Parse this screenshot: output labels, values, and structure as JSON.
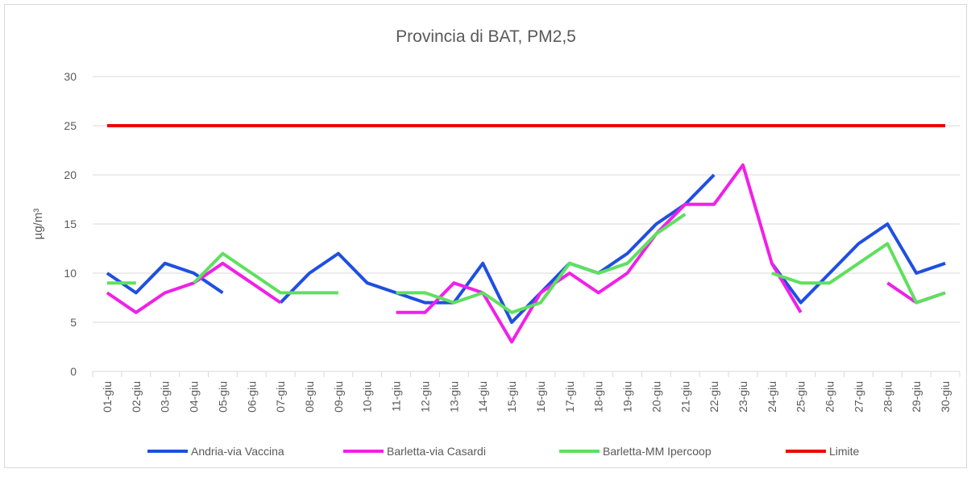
{
  "chart_data": {
    "type": "line",
    "title": "Provincia di BAT, PM2,5",
    "ylabel": "µg/m³",
    "categories": [
      "01-giu",
      "02-giu",
      "03-giu",
      "04-giu",
      "05-giu",
      "06-giu",
      "07-giu",
      "08-giu",
      "09-giu",
      "10-giu",
      "11-giu",
      "12-giu",
      "13-giu",
      "14-giu",
      "15-giu",
      "16-giu",
      "17-giu",
      "18-giu",
      "19-giu",
      "20-giu",
      "21-giu",
      "22-giu",
      "23-giu",
      "24-giu",
      "25-giu",
      "26-giu",
      "27-giu",
      "28-giu",
      "29-giu",
      "30-giu"
    ],
    "series": [
      {
        "name": "Andria-via Vaccina",
        "color": "#1f4fe0",
        "values": [
          10,
          8,
          11,
          10,
          8,
          null,
          7,
          10,
          12,
          9,
          8,
          7,
          7,
          11,
          5,
          8,
          11,
          10,
          12,
          15,
          17,
          20,
          null,
          11,
          7,
          10,
          13,
          15,
          10,
          11
        ]
      },
      {
        "name": "Barletta-via Casardi",
        "color": "#f020e8",
        "values": [
          8,
          6,
          8,
          9,
          11,
          9,
          7,
          null,
          null,
          null,
          6,
          6,
          9,
          8,
          3,
          8,
          10,
          8,
          10,
          14,
          17,
          17,
          21,
          11,
          6,
          null,
          null,
          9,
          7,
          8
        ]
      },
      {
        "name": "Barletta-MM Ipercoop",
        "color": "#5ee05e",
        "values": [
          9,
          9,
          null,
          9,
          12,
          10,
          8,
          8,
          8,
          null,
          8,
          8,
          7,
          8,
          6,
          7,
          11,
          10,
          11,
          14,
          16,
          null,
          null,
          10,
          9,
          9,
          11,
          13,
          7,
          8
        ]
      },
      {
        "name": "Limite",
        "color": "#ee0000",
        "values": [
          25,
          25,
          25,
          25,
          25,
          25,
          25,
          25,
          25,
          25,
          25,
          25,
          25,
          25,
          25,
          25,
          25,
          25,
          25,
          25,
          25,
          25,
          25,
          25,
          25,
          25,
          25,
          25,
          25,
          25
        ]
      }
    ],
    "ylim": [
      0,
      30
    ],
    "yticks": [
      0,
      5,
      10,
      15,
      20,
      25,
      30
    ],
    "grid": true,
    "legend": "bottom"
  }
}
